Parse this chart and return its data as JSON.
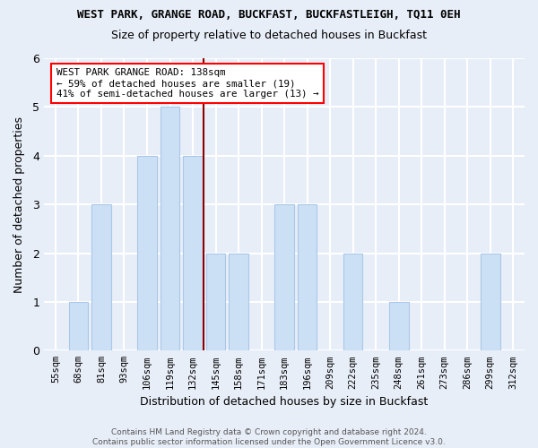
{
  "title": "WEST PARK, GRANGE ROAD, BUCKFAST, BUCKFASTLEIGH, TQ11 0EH",
  "subtitle": "Size of property relative to detached houses in Buckfast",
  "xlabel": "Distribution of detached houses by size in Buckfast",
  "ylabel": "Number of detached properties",
  "bins": [
    "55sqm",
    "68sqm",
    "81sqm",
    "93sqm",
    "106sqm",
    "119sqm",
    "132sqm",
    "145sqm",
    "158sqm",
    "171sqm",
    "183sqm",
    "196sqm",
    "209sqm",
    "222sqm",
    "235sqm",
    "248sqm",
    "261sqm",
    "273sqm",
    "286sqm",
    "299sqm",
    "312sqm"
  ],
  "counts": [
    0,
    1,
    3,
    0,
    4,
    5,
    4,
    2,
    2,
    0,
    3,
    3,
    0,
    2,
    0,
    1,
    0,
    0,
    0,
    2,
    0
  ],
  "bar_color": "#cce0f5",
  "bar_edge_color": "#a8c8e8",
  "vline_color": "#8b0000",
  "annotation_text": "WEST PARK GRANGE ROAD: 138sqm\n← 59% of detached houses are smaller (19)\n41% of semi-detached houses are larger (13) →",
  "annotation_box_color": "white",
  "annotation_box_edge": "red",
  "footer": "Contains HM Land Registry data © Crown copyright and database right 2024.\nContains public sector information licensed under the Open Government Licence v3.0.",
  "ylim": [
    0,
    6
  ],
  "background_color": "#e8eef8",
  "grid_color": "white",
  "bar_width": 0.85
}
